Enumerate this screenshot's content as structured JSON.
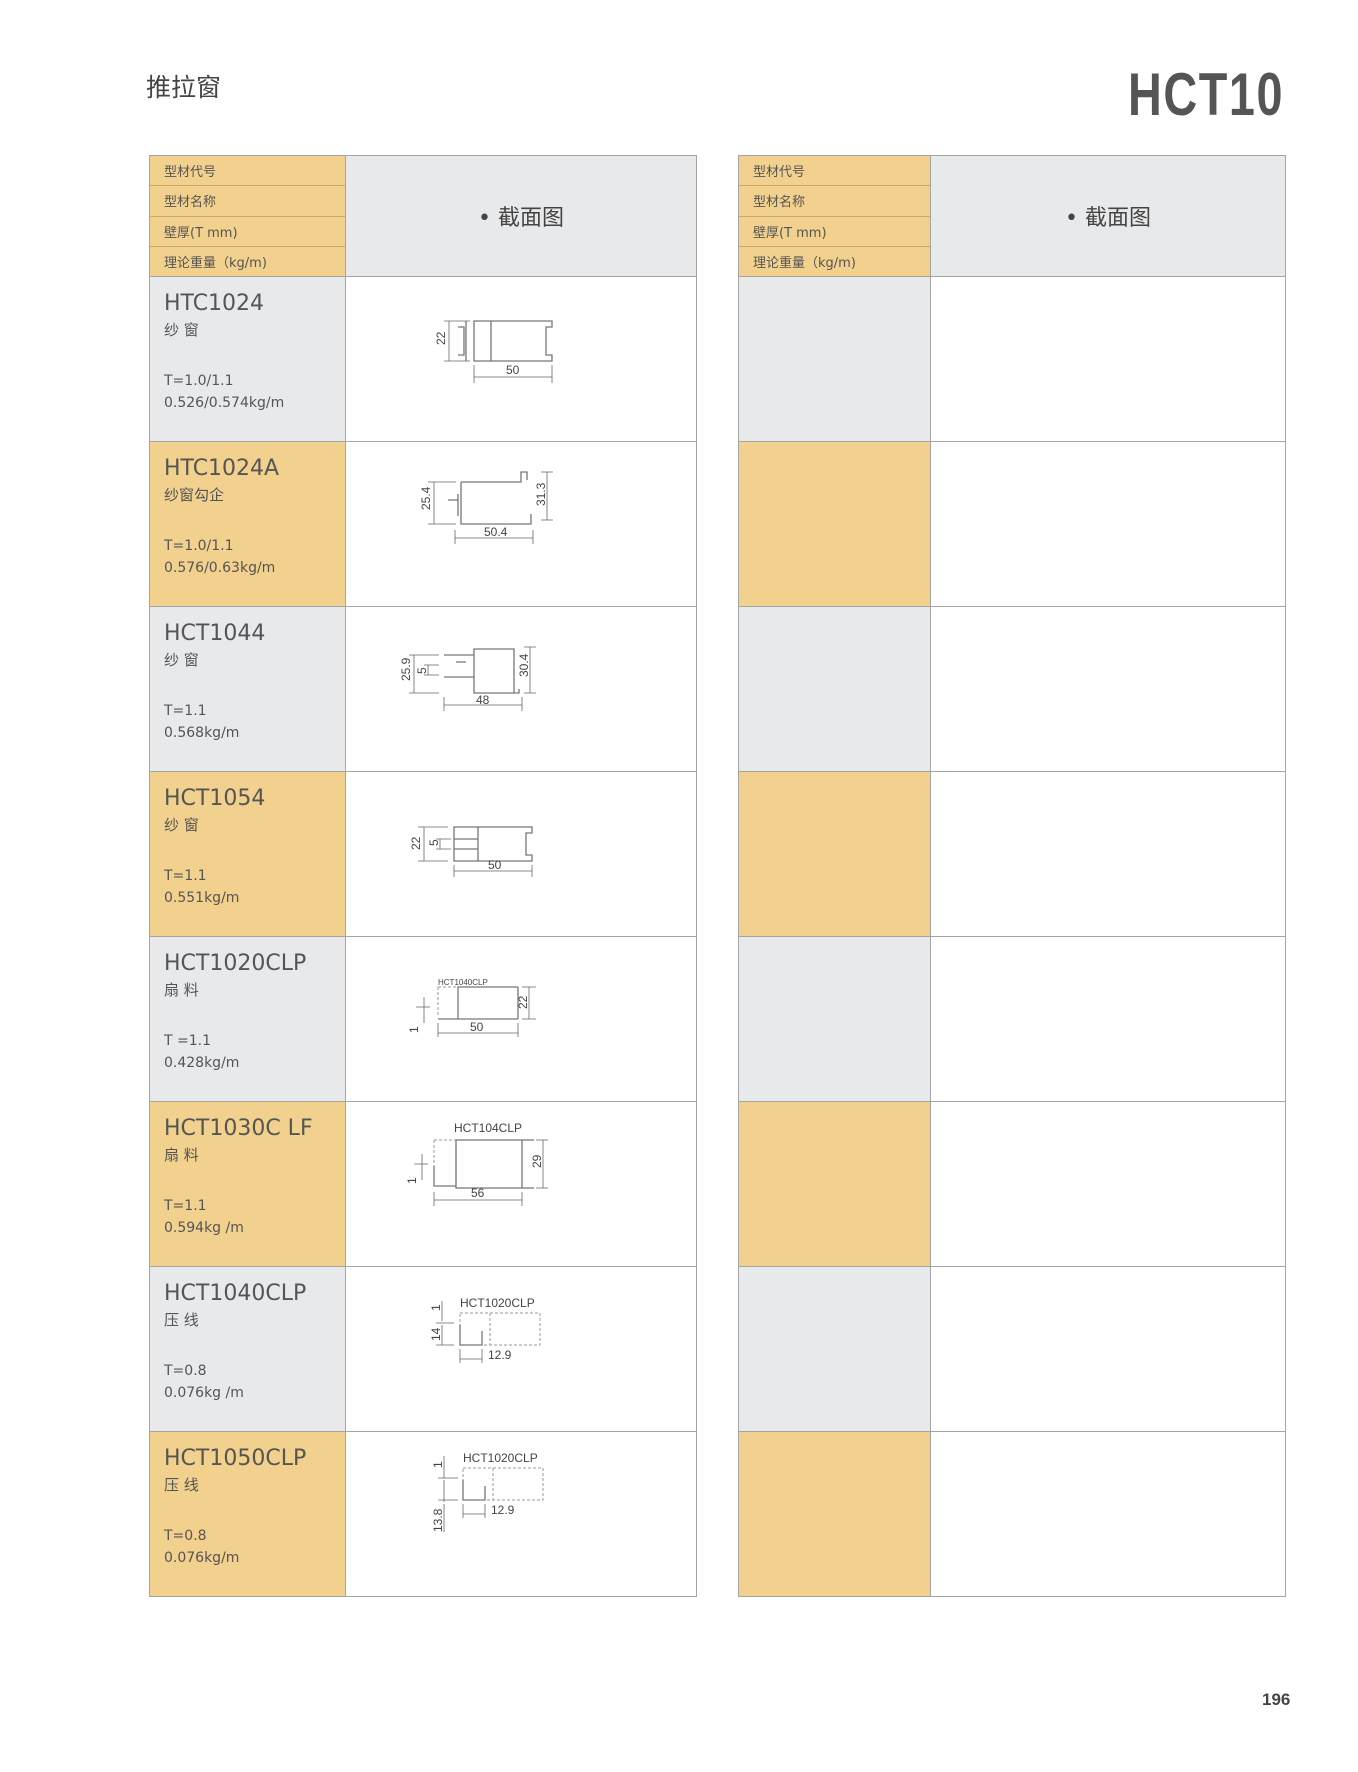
{
  "header": {
    "title": "推拉窗",
    "series": "HCT10",
    "page_number": "196"
  },
  "colors": {
    "label_orange": "#f2d08d",
    "label_grey": "#e8e9eb",
    "border": "#a5a5a5"
  },
  "table_header": {
    "labels": [
      "型材代号",
      "型材名称",
      "壁厚(T mm)",
      "理论重量（kg/m)"
    ],
    "section": "• 截面图"
  },
  "rows": [
    {
      "code": "HTC1024",
      "name": "纱 窗",
      "thickness": "T=1.0/1.1",
      "weight": "0.526/0.574kg/m",
      "dims": [
        "22",
        "50"
      ]
    },
    {
      "code": "HTC1024A",
      "name": "纱窗勾企",
      "thickness": "T=1.0/1.1",
      "weight": "0.576/0.63kg/m",
      "dims": [
        "25.4",
        "31.3",
        "50.4"
      ]
    },
    {
      "code": "HCT1044",
      "name": "纱 窗",
      "thickness": "T=1.1",
      "weight": "0.568kg/m",
      "dims": [
        "25.9",
        "5",
        "30.4",
        "48"
      ]
    },
    {
      "code": "HCT1054",
      "name": "纱 窗",
      "thickness": "T=1.1",
      "weight": "0.551kg/m",
      "dims": [
        "22",
        "5",
        "50"
      ]
    },
    {
      "code": "HCT1020CLP",
      "name": "扇 料",
      "thickness": "T =1.1",
      "weight": "0.428kg/m",
      "dims": [
        "HCT1040CLP",
        "1",
        "22",
        "50"
      ]
    },
    {
      "code": "HCT1030C LF",
      "name": "扇 料",
      "thickness": "T=1.1",
      "weight": "0.594kg /m",
      "dims": [
        "HCT104CLP",
        "1",
        "29",
        "56"
      ]
    },
    {
      "code": "HCT1040CLP",
      "name": "压 线",
      "thickness": "T=0.8",
      "weight": "0.076kg /m",
      "dims": [
        "HCT1020CLP",
        "1",
        "14",
        "12.9"
      ]
    },
    {
      "code": "HCT1050CLP",
      "name": "压 线",
      "thickness": "T=0.8",
      "weight": "0.076kg/m",
      "dims": [
        "HCT1020CLP",
        "1",
        "13.8",
        "12.9"
      ]
    }
  ]
}
